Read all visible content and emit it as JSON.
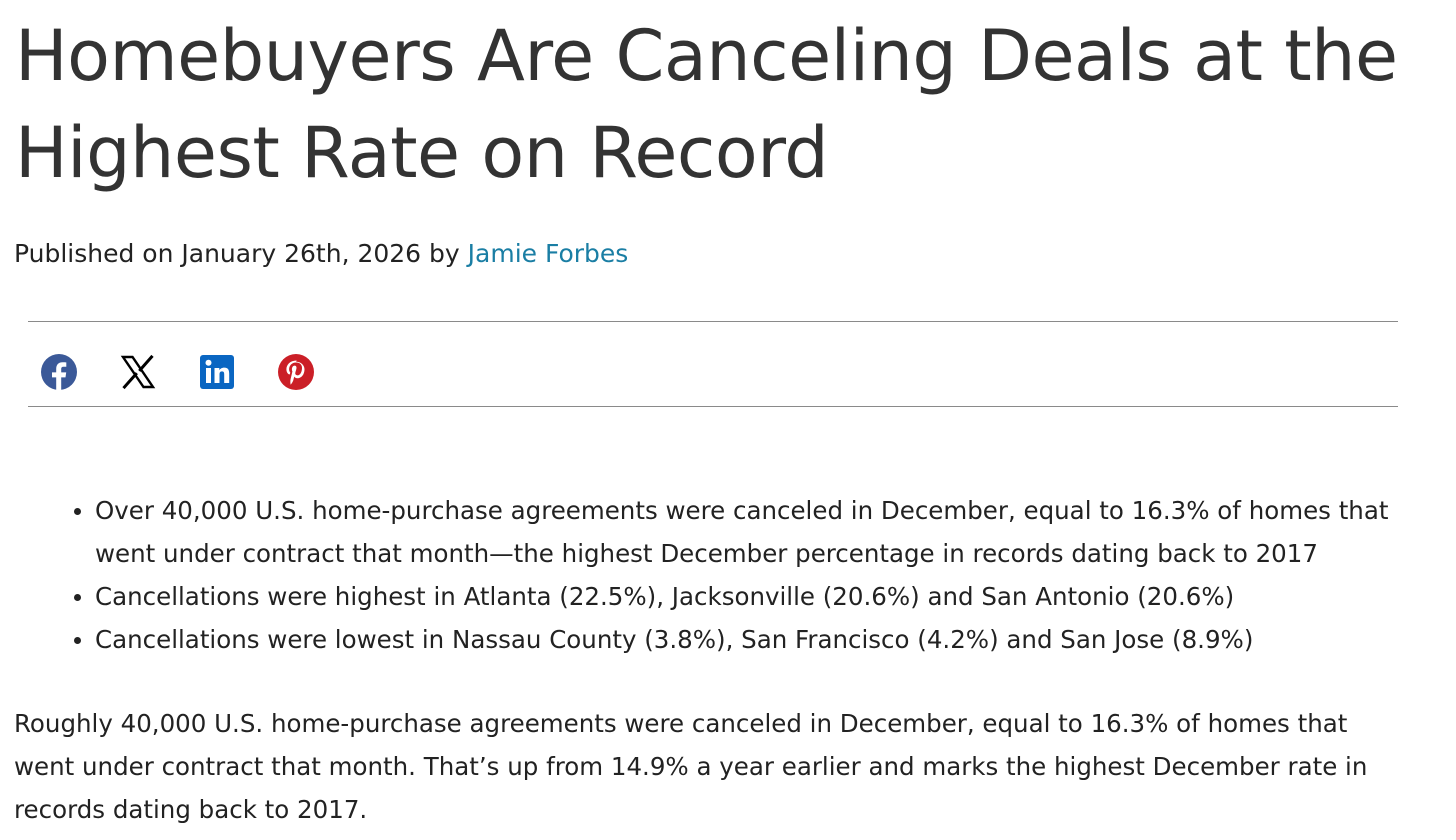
{
  "article": {
    "headline_line1": "Homebuyers Are Canceling Deals at the",
    "headline_line2": "Highest Rate on Record",
    "byline": {
      "prefix": "Published on January 26th, 2026 by ",
      "author": "Jamie Forbes"
    },
    "share_buttons": [
      {
        "network": "Facebook",
        "icon": "facebook-icon",
        "color": "#3b5998"
      },
      {
        "network": "X",
        "icon": "x-icon",
        "color": "#000000"
      },
      {
        "network": "LinkedIn",
        "icon": "linkedin-icon",
        "color": "#0a66c2"
      },
      {
        "network": "Pinterest",
        "icon": "pinterest-icon",
        "color": "#cb1f27"
      }
    ],
    "highlights": [
      "Over 40,000 U.S. home-purchase agreements were canceled in December, equal to 16.3% of homes that went under contract that month—the highest December percentage in records dating back to 2017",
      "Cancellations were highest in Atlanta (22.5%), Jacksonville (20.6%) and San Antonio (20.6%)",
      "Cancellations were lowest in Nassau County (3.8%), San Francisco (4.2%) and San Jose (8.9%)"
    ],
    "body_paragraph": "Roughly 40,000 U.S. home-purchase agreements were canceled in December, equal to 16.3% of homes that went under contract that month. That’s up from 14.9% a year earlier and marks the highest December rate in records dating back to 2017."
  },
  "colors": {
    "text": "#222222",
    "headline": "#333333",
    "link": "#1a7ea4",
    "divider": "#8a8a8a"
  }
}
